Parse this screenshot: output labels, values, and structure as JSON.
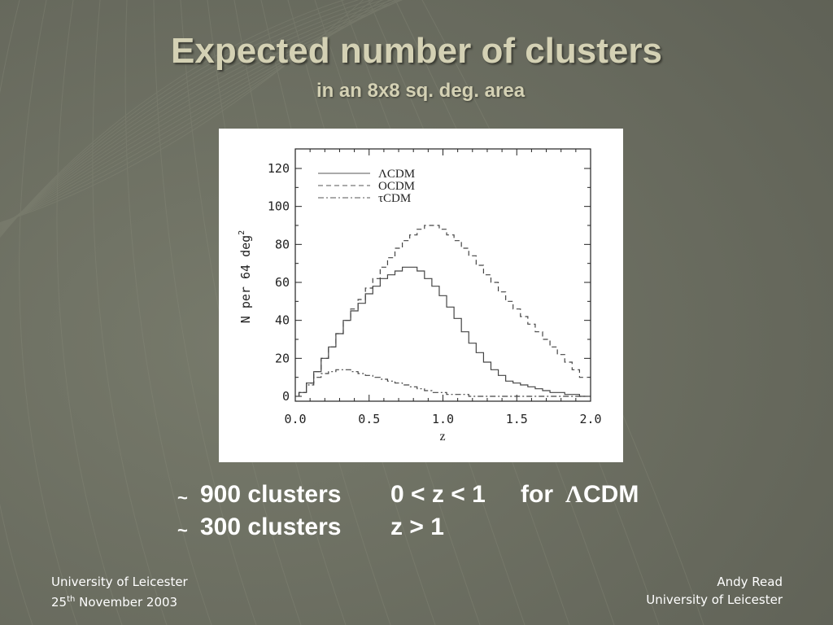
{
  "slide": {
    "title": "Expected number of clusters",
    "subtitle": "in an 8x8 sq. deg. area"
  },
  "bullets": [
    {
      "tilde": "~",
      "count": "900 clusters",
      "range": "0 < z < 1",
      "for": "for",
      "lambda": "Λ",
      "model": "CDM"
    },
    {
      "tilde": "~",
      "count": "300 clusters",
      "range": "z > 1"
    }
  ],
  "footer": {
    "left_line1": "University of Leicester",
    "left_day": "25",
    "left_sup": "th",
    "left_month_year": " November 2003",
    "right_line1": "Andy Read",
    "right_line2": "University of Leicester"
  },
  "chart_data": {
    "type": "line",
    "style": "histogram-step",
    "xlabel": "z",
    "ylabel": "N per 64 deg²",
    "xlim": [
      0.0,
      2.0
    ],
    "ylim": [
      0,
      130
    ],
    "xticks": [
      "0.0",
      "0.5",
      "1.0",
      "1.5",
      "2.0"
    ],
    "yticks": [
      "0",
      "20",
      "40",
      "60",
      "80",
      "100",
      "120"
    ],
    "legend_position": "top-left",
    "bin_width": 0.05,
    "x": [
      0.05,
      0.1,
      0.15,
      0.2,
      0.25,
      0.3,
      0.35,
      0.4,
      0.45,
      0.5,
      0.55,
      0.6,
      0.65,
      0.7,
      0.75,
      0.8,
      0.85,
      0.9,
      0.95,
      1.0,
      1.05,
      1.1,
      1.15,
      1.2,
      1.25,
      1.3,
      1.35,
      1.4,
      1.45,
      1.5,
      1.55,
      1.6,
      1.65,
      1.7,
      1.75,
      1.8,
      1.85,
      1.9,
      1.95
    ],
    "series": [
      {
        "name": "ΛCDM",
        "dash": "solid",
        "values": [
          2,
          7,
          13,
          20,
          26,
          33,
          40,
          45,
          49,
          54,
          58,
          62,
          64,
          66,
          68,
          68,
          66,
          62,
          58,
          53,
          47,
          41,
          34,
          28,
          23,
          18,
          14,
          11,
          8,
          7,
          6,
          5,
          4,
          3,
          2,
          2,
          1,
          1,
          0
        ]
      },
      {
        "name": "OCDM",
        "dash": "dashed",
        "values": [
          2,
          7,
          13,
          20,
          26,
          33,
          40,
          46,
          51,
          57,
          62,
          68,
          73,
          78,
          82,
          85,
          88,
          90,
          90,
          88,
          85,
          82,
          78,
          74,
          69,
          64,
          60,
          55,
          50,
          46,
          42,
          38,
          34,
          30,
          26,
          22,
          18,
          14,
          10
        ]
      },
      {
        "name": "τCDM",
        "dash": "dashdot",
        "values": [
          2,
          6,
          10,
          12,
          13,
          14,
          14,
          13,
          12,
          11,
          10,
          9,
          8,
          7,
          6,
          5,
          4,
          3,
          2,
          2,
          1,
          1,
          1,
          0,
          0,
          0,
          0,
          0,
          0,
          0,
          0,
          0,
          0,
          0,
          0,
          0,
          0,
          0,
          0
        ]
      }
    ]
  }
}
